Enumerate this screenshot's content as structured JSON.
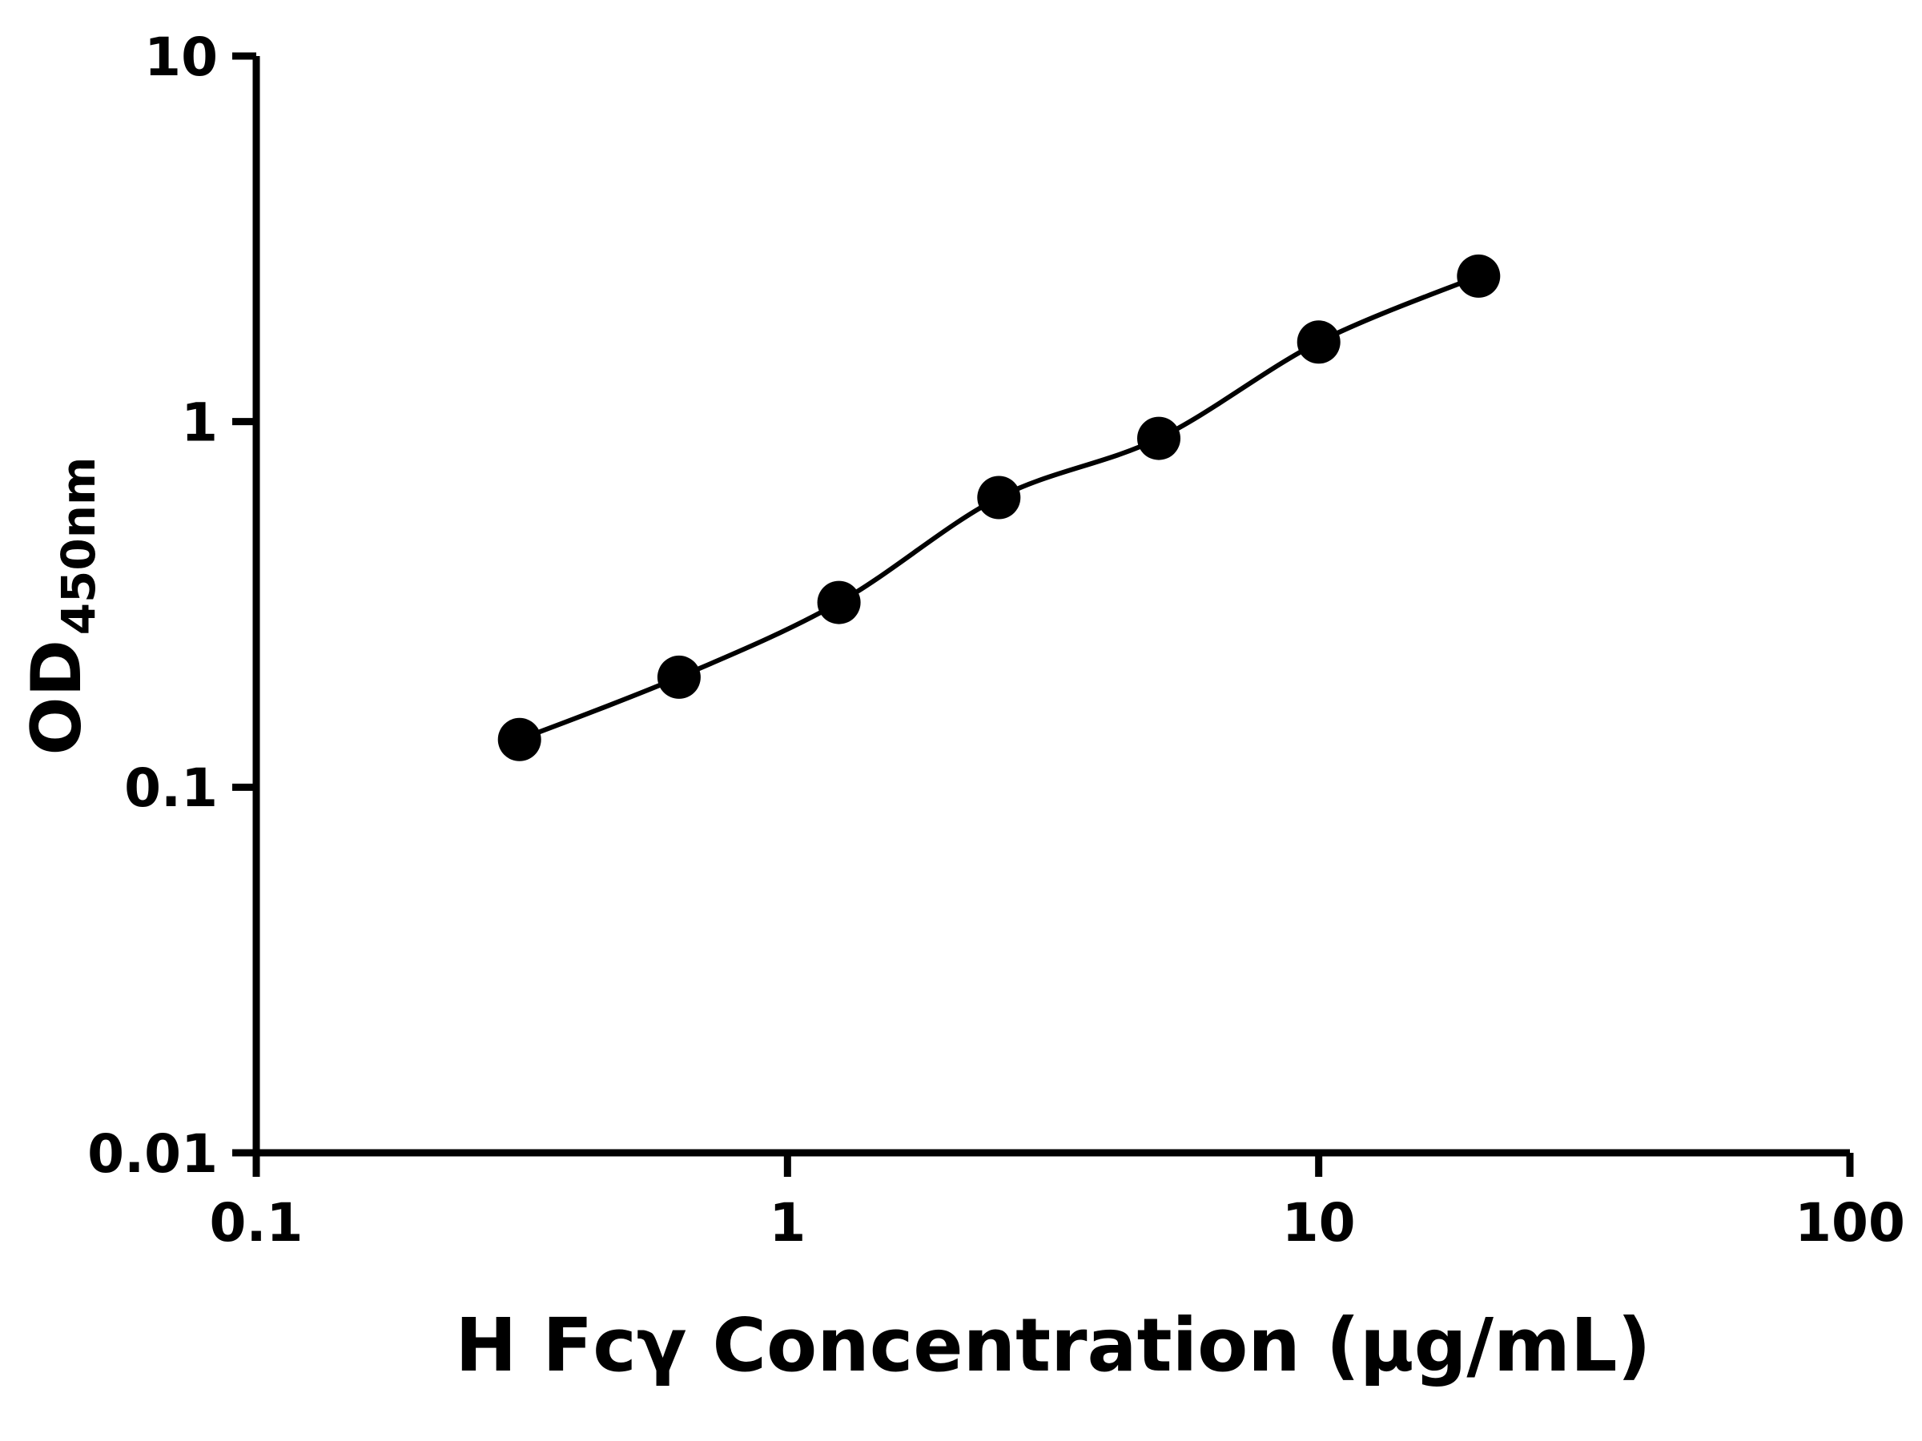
{
  "chart_data": {
    "type": "scatter",
    "x": [
      0.313,
      0.625,
      1.25,
      2.5,
      5,
      10,
      20
    ],
    "y": [
      0.135,
      0.2,
      0.32,
      0.62,
      0.9,
      1.65,
      2.5
    ],
    "title": "",
    "xlabel": "H Fcγ Concentration (µg/mL)",
    "ylabel_main": "OD",
    "ylabel_sub": "450nm",
    "xlim": [
      0.1,
      100
    ],
    "ylim": [
      0.01,
      10
    ],
    "x_scale": "log",
    "y_scale": "log",
    "x_ticks": [
      {
        "value": 0.1,
        "label": "0.1"
      },
      {
        "value": 1,
        "label": "1"
      },
      {
        "value": 10,
        "label": "10"
      },
      {
        "value": 100,
        "label": "100"
      }
    ],
    "y_ticks": [
      {
        "value": 0.01,
        "label": "0.01"
      },
      {
        "value": 0.1,
        "label": "0.1"
      },
      {
        "value": 1,
        "label": "1"
      },
      {
        "value": 10,
        "label": "10"
      }
    ],
    "grid": false,
    "legend": "none",
    "line_color": "#000000",
    "marker_color": "#000000",
    "axis_color": "#000000",
    "background_color": "#ffffff"
  }
}
